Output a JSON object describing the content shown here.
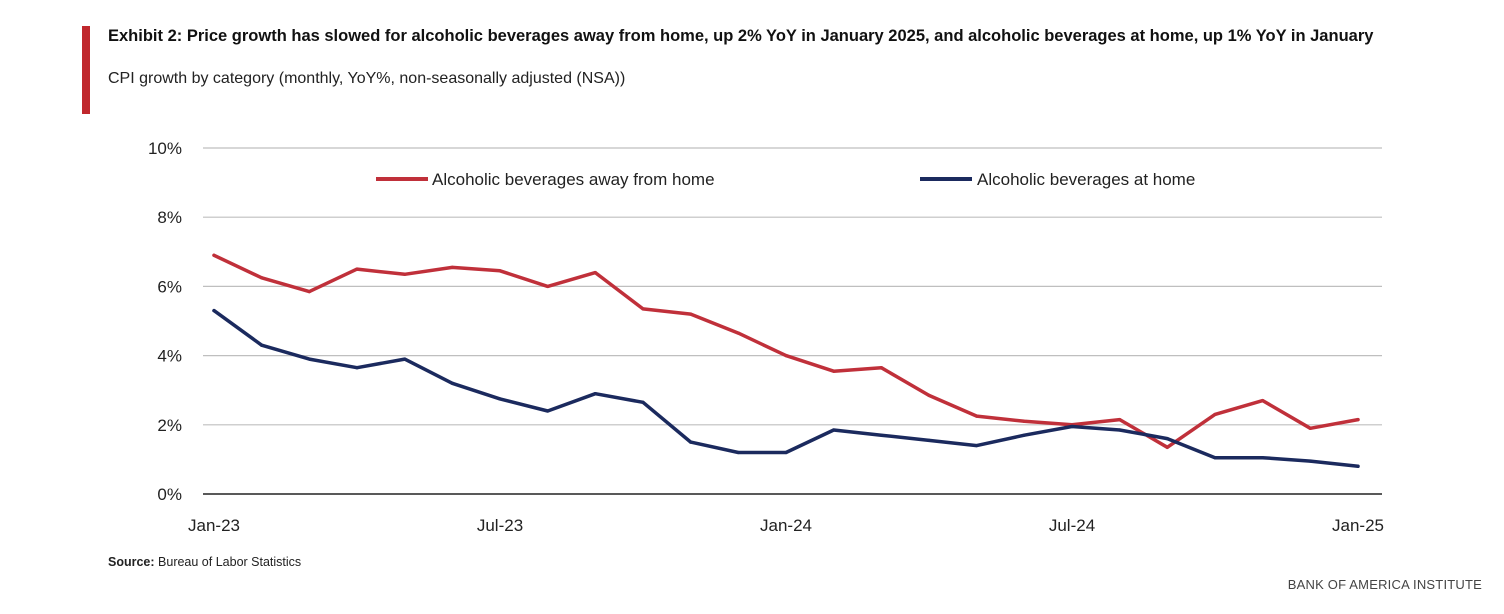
{
  "header": {
    "title": "Exhibit 2: Price growth has slowed for alcoholic beverages away from home, up 2% YoY in January 2025, and alcoholic beverages at home, up 1% YoY in January",
    "subtitle": "CPI growth by category (monthly, YoY%, non-seasonally adjusted (NSA))"
  },
  "footer": {
    "source_label": "Source:",
    "source_text": "Bureau of Labor Statistics",
    "brand": "BANK OF AMERICA INSTITUTE"
  },
  "colors": {
    "accent": "#c0272d",
    "series_away": "#c0303a",
    "series_home": "#1b2a5e",
    "grid": "#bfbfbf"
  },
  "chart_data": {
    "type": "line",
    "title": "",
    "xlabel": "",
    "ylabel": "",
    "ylim": [
      0,
      10
    ],
    "yticks": [
      "0%",
      "2%",
      "4%",
      "6%",
      "8%",
      "10%"
    ],
    "x": [
      "Jan-23",
      "Feb-23",
      "Mar-23",
      "Apr-23",
      "May-23",
      "Jun-23",
      "Jul-23",
      "Aug-23",
      "Sep-23",
      "Oct-23",
      "Nov-23",
      "Dec-23",
      "Jan-24",
      "Feb-24",
      "Mar-24",
      "Apr-24",
      "May-24",
      "Jun-24",
      "Jul-24",
      "Aug-24",
      "Sep-24",
      "Oct-24",
      "Nov-24",
      "Dec-24",
      "Jan-25"
    ],
    "xtick_labels": [
      {
        "index": 0,
        "label": "Jan-23"
      },
      {
        "index": 6,
        "label": "Jul-23"
      },
      {
        "index": 12,
        "label": "Jan-24"
      },
      {
        "index": 18,
        "label": "Jul-24"
      },
      {
        "index": 24,
        "label": "Jan-25"
      }
    ],
    "grid": true,
    "legend": "top",
    "series": [
      {
        "name": "Alcoholic beverages away from home",
        "color": "#c0303a",
        "values": [
          6.9,
          6.25,
          5.85,
          6.5,
          6.35,
          6.55,
          6.45,
          6.0,
          6.4,
          5.35,
          5.2,
          4.65,
          4.0,
          3.55,
          3.65,
          2.85,
          2.25,
          2.1,
          2.0,
          2.15,
          1.35,
          2.3,
          2.7,
          1.9,
          2.15
        ]
      },
      {
        "name": "Alcoholic beverages at home",
        "color": "#1b2a5e",
        "values": [
          5.3,
          4.3,
          3.9,
          3.65,
          3.9,
          3.2,
          2.75,
          2.4,
          2.9,
          2.65,
          1.5,
          1.2,
          1.2,
          1.85,
          1.7,
          1.55,
          1.4,
          1.7,
          1.95,
          1.85,
          1.6,
          1.05,
          1.05,
          0.95,
          0.8
        ]
      }
    ]
  }
}
